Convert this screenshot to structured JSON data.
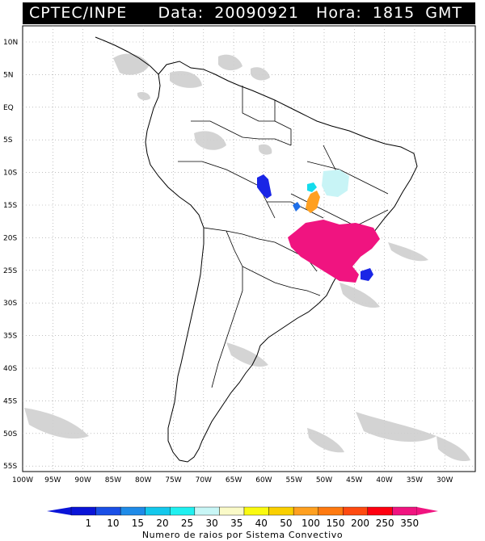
{
  "header": {
    "agency": "CPTEC/INPE",
    "date_label": "Data:",
    "date_value": "20090921",
    "time_label": "Hora:",
    "time_value": "1815",
    "timezone": "GMT"
  },
  "map": {
    "lat_labels": [
      "10N",
      "5N",
      "EQ",
      "5S",
      "10S",
      "15S",
      "20S",
      "25S",
      "30S",
      "35S",
      "40S",
      "45S",
      "50S",
      "55S"
    ],
    "lon_labels": [
      "100W",
      "95W",
      "90W",
      "85W",
      "80W",
      "75W",
      "70W",
      "65W",
      "60W",
      "55W",
      "50W",
      "45W",
      "40W",
      "35W",
      "30W"
    ],
    "colors": {
      "land_outline": "#000000",
      "grid": "#9a9a9a",
      "cloud": "#cfcfcf"
    },
    "systems": [
      {
        "name": "system-mato-grosso-west",
        "value_class": "1-10",
        "color": "#1a26e6"
      },
      {
        "name": "system-mato-grosso-small",
        "value_class": "10-15",
        "color": "#1f6fe8"
      },
      {
        "name": "system-goias-cyan",
        "value_class": "20-25",
        "color": "#14dcec"
      },
      {
        "name": "system-bahia-lightcyan",
        "value_class": "25-30",
        "color": "#c8f4f6"
      },
      {
        "name": "system-goias-orange",
        "value_class": "100-150",
        "color": "#ffa020"
      },
      {
        "name": "system-southeast-magenta",
        "value_class": ">350",
        "color": "#f01480"
      },
      {
        "name": "system-atlantic-blue",
        "value_class": "1-10",
        "color": "#1a26e6"
      }
    ]
  },
  "legend": {
    "ticks": [
      "1",
      "10",
      "15",
      "20",
      "25",
      "30",
      "35",
      "40",
      "50",
      "100",
      "150",
      "200",
      "250",
      "350"
    ],
    "colors": [
      "#0a14d8",
      "#1a4fe6",
      "#1f8be8",
      "#14c8ec",
      "#20f0f0",
      "#c8f6f6",
      "#fafac8",
      "#fafa10",
      "#fad000",
      "#ffa020",
      "#ff7a10",
      "#ff4a10",
      "#ff0010",
      "#f01480"
    ],
    "title": "Numero de raios por Sistema Convectivo"
  }
}
